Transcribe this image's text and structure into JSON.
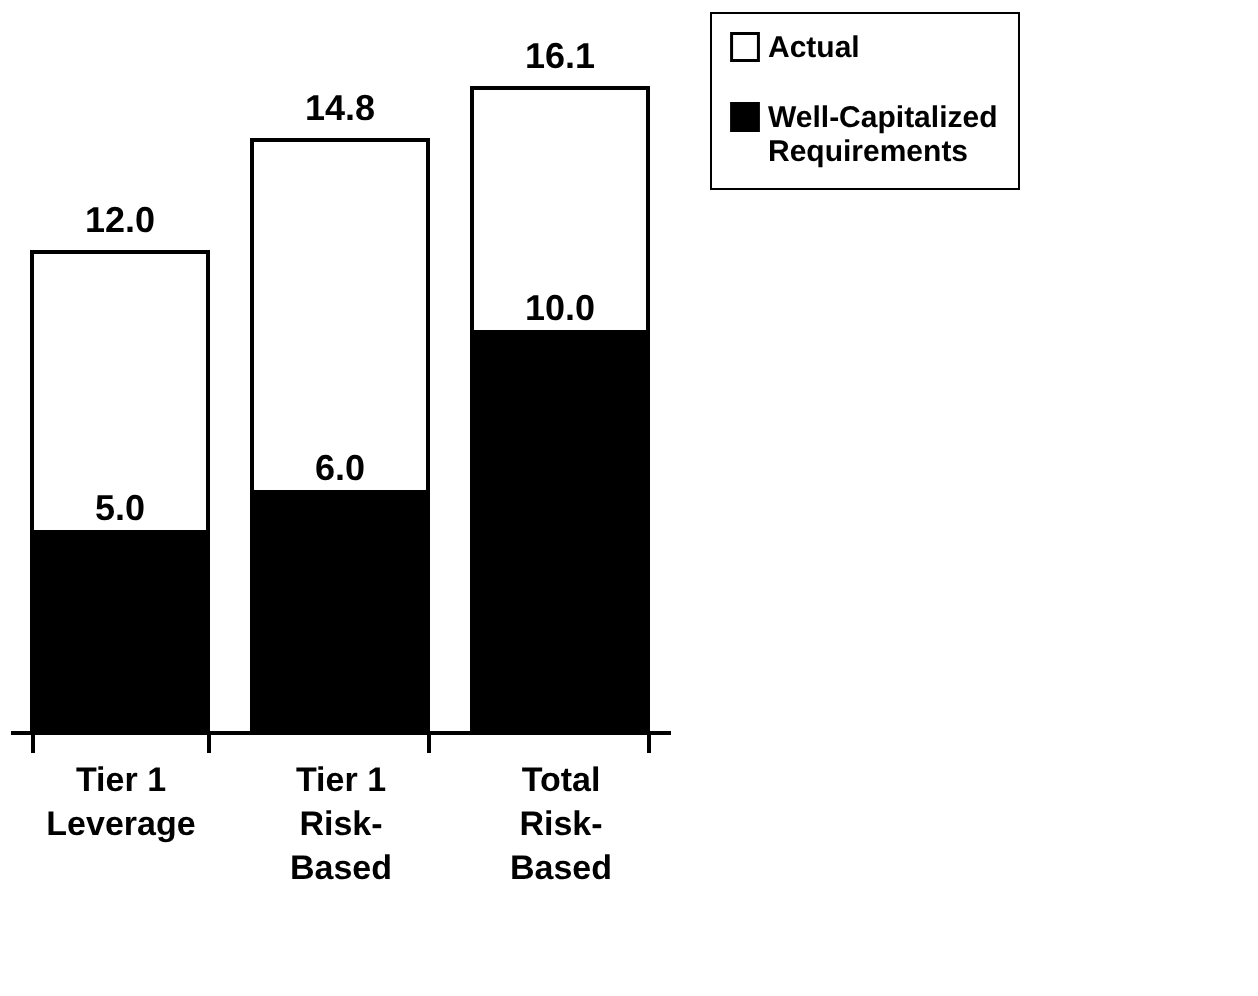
{
  "chart_data": {
    "type": "bar",
    "categories": [
      "Tier 1\nLeverage",
      "Tier 1\nRisk-\nBased",
      "Total\nRisk-\nBased"
    ],
    "stacked": true,
    "series": [
      {
        "name": "Well-Capitalized\nRequirements",
        "color": "#000000",
        "values": [
          5.0,
          6.0,
          10.0
        ],
        "value_labels": [
          "5.0",
          "6.0",
          "10.0"
        ]
      },
      {
        "name": "Actual",
        "color": "#ffffff",
        "values": [
          7.0,
          8.8,
          6.1
        ]
      }
    ],
    "totals": [
      "12.0",
      "14.8",
      "16.1"
    ],
    "legend": "right",
    "grid": false
  }
}
